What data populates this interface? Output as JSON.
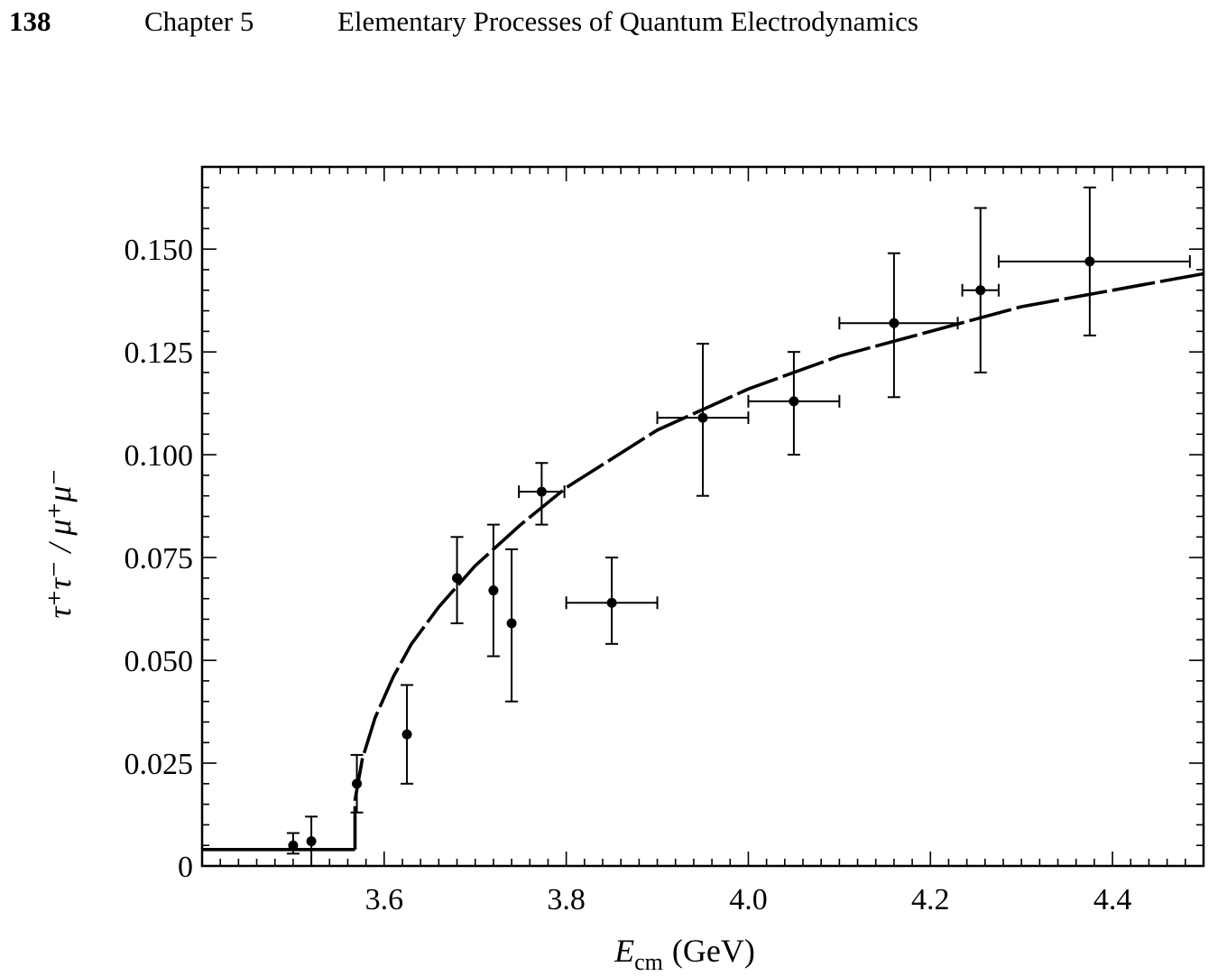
{
  "header": {
    "page_number": "138",
    "chapter": "Chapter 5",
    "title": "Elementary Processes of Quantum Electrodynamics"
  },
  "chart_data": {
    "type": "scatter",
    "title": "",
    "xlabel_main": "E",
    "xlabel_sub": "cm",
    "xlabel_unit": "(GeV)",
    "ylabel": "τ⁺τ⁻ / μ⁺μ⁻",
    "xlim": [
      3.4,
      4.5
    ],
    "ylim": [
      0,
      0.17
    ],
    "x_ticks": [
      3.6,
      3.8,
      4.0,
      4.2,
      4.4
    ],
    "x_tick_labels": [
      "3.6",
      "3.8",
      "4.0",
      "4.2",
      "4.4"
    ],
    "y_ticks": [
      0,
      0.025,
      0.05,
      0.075,
      0.1,
      0.125,
      0.15
    ],
    "y_tick_labels": [
      "0",
      "0.025",
      "0.050",
      "0.075",
      "0.100",
      "0.125",
      "0.150"
    ],
    "grid": false,
    "series": [
      {
        "kind": "points-with-errorbars",
        "points": [
          {
            "x": 3.5,
            "y": 0.005,
            "y_lo": 0.003,
            "y_hi": 0.008,
            "x_lo": 3.5,
            "x_hi": 3.5
          },
          {
            "x": 3.52,
            "y": 0.006,
            "y_lo": 0.0,
            "y_hi": 0.012,
            "x_lo": 3.52,
            "x_hi": 3.52
          },
          {
            "x": 3.57,
            "y": 0.02,
            "y_lo": 0.013,
            "y_hi": 0.027,
            "x_lo": 3.57,
            "x_hi": 3.57
          },
          {
            "x": 3.625,
            "y": 0.032,
            "y_lo": 0.02,
            "y_hi": 0.044,
            "x_lo": 3.625,
            "x_hi": 3.625
          },
          {
            "x": 3.68,
            "y": 0.07,
            "y_lo": 0.059,
            "y_hi": 0.08,
            "x_lo": 3.68,
            "x_hi": 3.68
          },
          {
            "x": 3.72,
            "y": 0.067,
            "y_lo": 0.051,
            "y_hi": 0.083,
            "x_lo": 3.72,
            "x_hi": 3.72
          },
          {
            "x": 3.74,
            "y": 0.059,
            "y_lo": 0.04,
            "y_hi": 0.077,
            "x_lo": 3.74,
            "x_hi": 3.74
          },
          {
            "x": 3.773,
            "y": 0.091,
            "y_lo": 0.083,
            "y_hi": 0.098,
            "x_lo": 3.748,
            "x_hi": 3.798
          },
          {
            "x": 3.85,
            "y": 0.064,
            "y_lo": 0.054,
            "y_hi": 0.075,
            "x_lo": 3.8,
            "x_hi": 3.9
          },
          {
            "x": 3.95,
            "y": 0.109,
            "y_lo": 0.09,
            "y_hi": 0.127,
            "x_lo": 3.9,
            "x_hi": 4.0
          },
          {
            "x": 4.05,
            "y": 0.113,
            "y_lo": 0.1,
            "y_hi": 0.125,
            "x_lo": 4.0,
            "x_hi": 4.1
          },
          {
            "x": 4.16,
            "y": 0.132,
            "y_lo": 0.114,
            "y_hi": 0.149,
            "x_lo": 4.1,
            "x_hi": 4.23
          },
          {
            "x": 4.255,
            "y": 0.14,
            "y_lo": 0.12,
            "y_hi": 0.16,
            "x_lo": 4.235,
            "x_hi": 4.275
          },
          {
            "x": 4.375,
            "y": 0.147,
            "y_lo": 0.129,
            "y_hi": 0.165,
            "x_lo": 4.275,
            "x_hi": 4.485
          }
        ]
      },
      {
        "kind": "dashed-curve",
        "segments": [
          [
            [
              3.4,
              0.004
            ],
            [
              3.568,
              0.004
            ]
          ],
          [
            [
              3.568,
              0.004
            ],
            [
              3.568,
              0.016
            ],
            [
              3.576,
              0.026
            ],
            [
              3.59,
              0.036
            ],
            [
              3.61,
              0.046
            ],
            [
              3.63,
              0.054
            ],
            [
              3.66,
              0.063
            ],
            [
              3.7,
              0.073
            ],
            [
              3.75,
              0.083
            ],
            [
              3.8,
              0.092
            ],
            [
              3.85,
              0.099
            ],
            [
              3.9,
              0.106
            ],
            [
              3.95,
              0.111
            ],
            [
              4.0,
              0.116
            ],
            [
              4.05,
              0.12
            ],
            [
              4.1,
              0.124
            ],
            [
              4.15,
              0.127
            ],
            [
              4.2,
              0.13
            ],
            [
              4.25,
              0.133
            ],
            [
              4.3,
              0.136
            ],
            [
              4.35,
              0.138
            ],
            [
              4.4,
              0.14
            ],
            [
              4.45,
              0.142
            ],
            [
              4.5,
              0.144
            ]
          ]
        ]
      }
    ]
  }
}
